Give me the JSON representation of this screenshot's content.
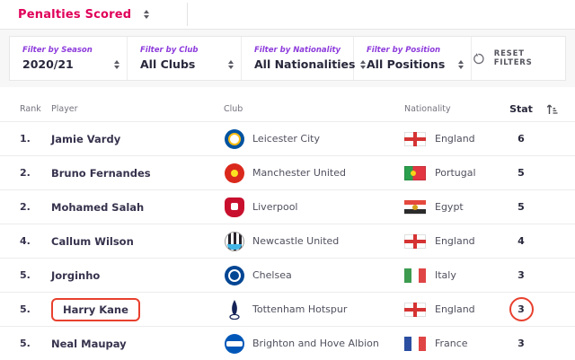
{
  "header": {
    "title": "Penalties Scored",
    "sort_icon": "up-down-arrows-icon"
  },
  "filters": [
    {
      "label": "Filter by Season",
      "value": "2020/21"
    },
    {
      "label": "Filter by Club",
      "value": "All Clubs"
    },
    {
      "label": "Filter by Nationality",
      "value": "All Nationalities"
    },
    {
      "label": "Filter by Position",
      "value": "All Positions"
    }
  ],
  "reset": {
    "label": "RESET FILTERS",
    "icon": "undo-arrow-icon"
  },
  "table": {
    "columns": {
      "rank": "Rank",
      "player": "Player",
      "club": "Club",
      "nationality": "Nationality",
      "stat": "Stat"
    },
    "sort_icon": "sort-ascending-icon",
    "rows": [
      {
        "rank": "1.",
        "player": "Jamie Vardy",
        "club": "Leicester City",
        "club_badge": "leicester-city-badge",
        "nationality": "England",
        "flag": "england",
        "stat": "6",
        "highlight_player": false,
        "highlight_stat": false
      },
      {
        "rank": "2.",
        "player": "Bruno Fernandes",
        "club": "Manchester United",
        "club_badge": "manchester-united-badge",
        "nationality": "Portugal",
        "flag": "portugal",
        "stat": "5",
        "highlight_player": false,
        "highlight_stat": false
      },
      {
        "rank": "2.",
        "player": "Mohamed Salah",
        "club": "Liverpool",
        "club_badge": "liverpool-badge",
        "nationality": "Egypt",
        "flag": "egypt",
        "stat": "5",
        "highlight_player": false,
        "highlight_stat": false
      },
      {
        "rank": "4.",
        "player": "Callum Wilson",
        "club": "Newcastle United",
        "club_badge": "newcastle-united-badge",
        "nationality": "England",
        "flag": "england",
        "stat": "4",
        "highlight_player": false,
        "highlight_stat": false
      },
      {
        "rank": "5.",
        "player": "Jorginho",
        "club": "Chelsea",
        "club_badge": "chelsea-badge",
        "nationality": "Italy",
        "flag": "italy",
        "stat": "3",
        "highlight_player": false,
        "highlight_stat": false
      },
      {
        "rank": "5.",
        "player": "Harry Kane",
        "club": "Tottenham Hotspur",
        "club_badge": "tottenham-hotspur-badge",
        "nationality": "England",
        "flag": "england",
        "stat": "3",
        "highlight_player": true,
        "highlight_stat": true
      },
      {
        "rank": "5.",
        "player": "Neal Maupay",
        "club": "Brighton and Hove Albion",
        "club_badge": "brighton-badge",
        "nationality": "France",
        "flag": "france",
        "stat": "3",
        "highlight_player": false,
        "highlight_stat": false
      }
    ]
  },
  "colors": {
    "accent_pink": "#e0005a",
    "accent_purple": "#8d3bdb",
    "annotation_red": "#e8402e"
  },
  "badges": {
    "leicester-city-badge": {
      "bg": "#0053a0",
      "accent": "#fdbe11"
    },
    "manchester-united-badge": {
      "bg": "#da291c",
      "accent": "#fbe122"
    },
    "liverpool-badge": {
      "bg": "#c8102e",
      "accent": "#ffffff"
    },
    "newcastle-united-badge": {
      "bg": "#26222a",
      "accent": "#41b6e6"
    },
    "chelsea-badge": {
      "bg": "#034694",
      "accent": "#ffffff"
    },
    "tottenham-hotspur-badge": {
      "bg": "#ffffff",
      "accent": "#132257"
    },
    "brighton-badge": {
      "bg": "#0057b8",
      "accent": "#ffffff"
    }
  },
  "flags": {
    "england": {
      "type": "cross",
      "bg": "#ffffff",
      "cross": "#d53333"
    },
    "portugal": {
      "type": "bicolor",
      "left": "#2a9f4c",
      "right": "#e23642",
      "split": 40,
      "emblem": "#f7d417"
    },
    "egypt": {
      "type": "hstripes",
      "stripes": [
        "#e5493d",
        "#ffffff",
        "#2b2b2b"
      ],
      "emblem": "#d4a017"
    },
    "italy": {
      "type": "vstripes",
      "stripes": [
        "#3d9b4f",
        "#ffffff",
        "#e04545"
      ]
    },
    "france": {
      "type": "vstripes",
      "stripes": [
        "#2b4ea0",
        "#ffffff",
        "#e04545"
      ]
    }
  }
}
